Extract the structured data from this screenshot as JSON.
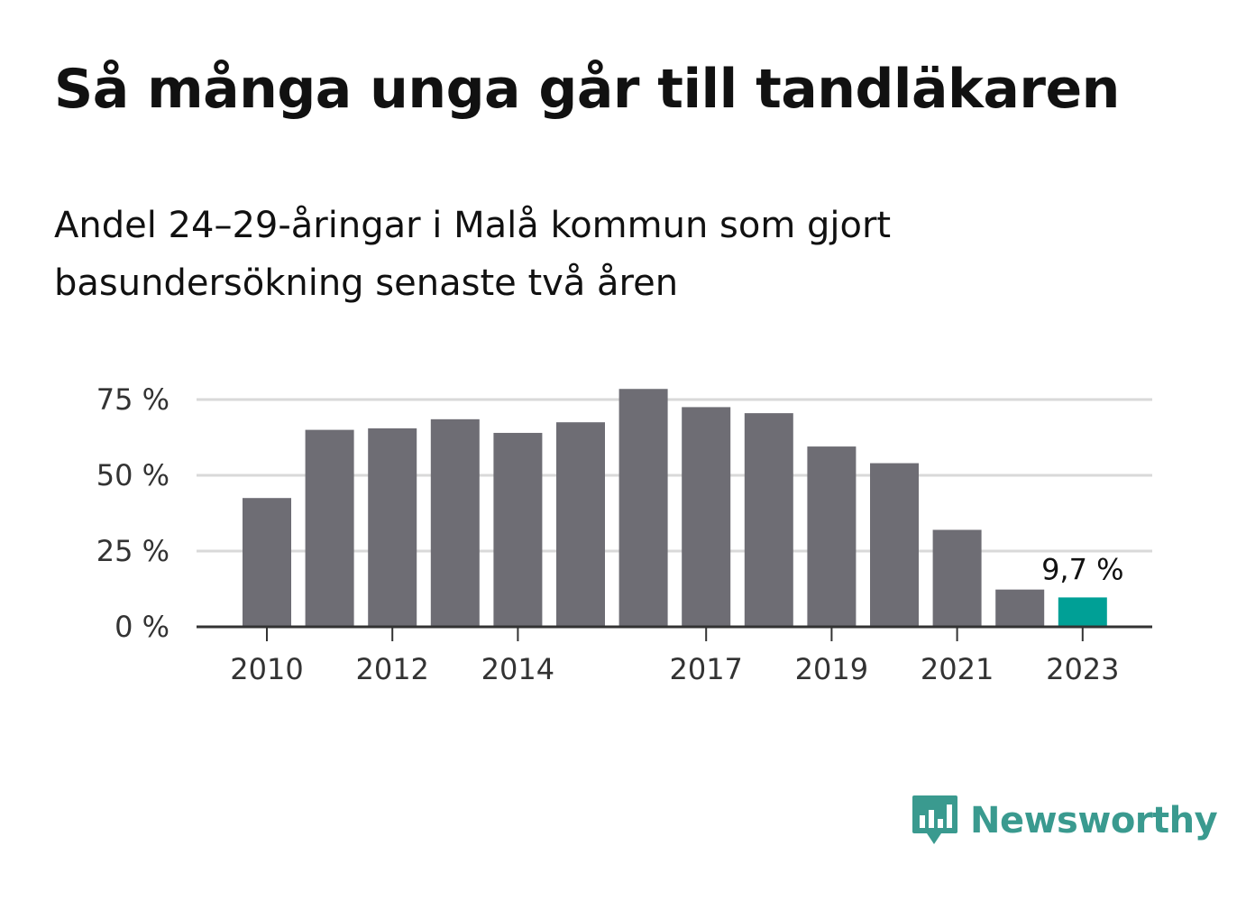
{
  "title": "Så många unga går till tandläkaren",
  "subtitle": "Andel 24–29-åringar i Malå kommun som gjort basundersökning senaste två åren",
  "brand": {
    "name": "Newsworthy",
    "color": "#3a9a8f",
    "icon": "newsworthy-logo-icon"
  },
  "colors": {
    "bar": "#6e6d74",
    "highlight": "#00a096",
    "grid": "#d9d9d9",
    "axis": "#333333"
  },
  "chart_data": {
    "type": "bar",
    "categories": [
      "2010",
      "2011",
      "2012",
      "2013",
      "2014",
      "2015",
      "2016",
      "2017",
      "2018",
      "2019",
      "2020",
      "2021",
      "2022",
      "2023"
    ],
    "values": [
      42.5,
      65,
      65.5,
      68.5,
      64,
      67.5,
      78.5,
      72.5,
      70.5,
      59.5,
      54,
      32,
      12.3,
      9.7
    ],
    "highlight_index": 13,
    "data_labels": [
      {
        "index": 13,
        "text": "9,7 %"
      }
    ],
    "x_tick_labels": [
      "2010",
      "2012",
      "2014",
      "2017",
      "2019",
      "2021",
      "2023"
    ],
    "y_ticks": [
      0,
      25,
      50,
      75
    ],
    "y_tick_labels": [
      "0 %",
      "25 %",
      "50 %",
      "75 %"
    ],
    "ylim": [
      0,
      80
    ],
    "grid": true,
    "xlabel": "",
    "ylabel": ""
  }
}
